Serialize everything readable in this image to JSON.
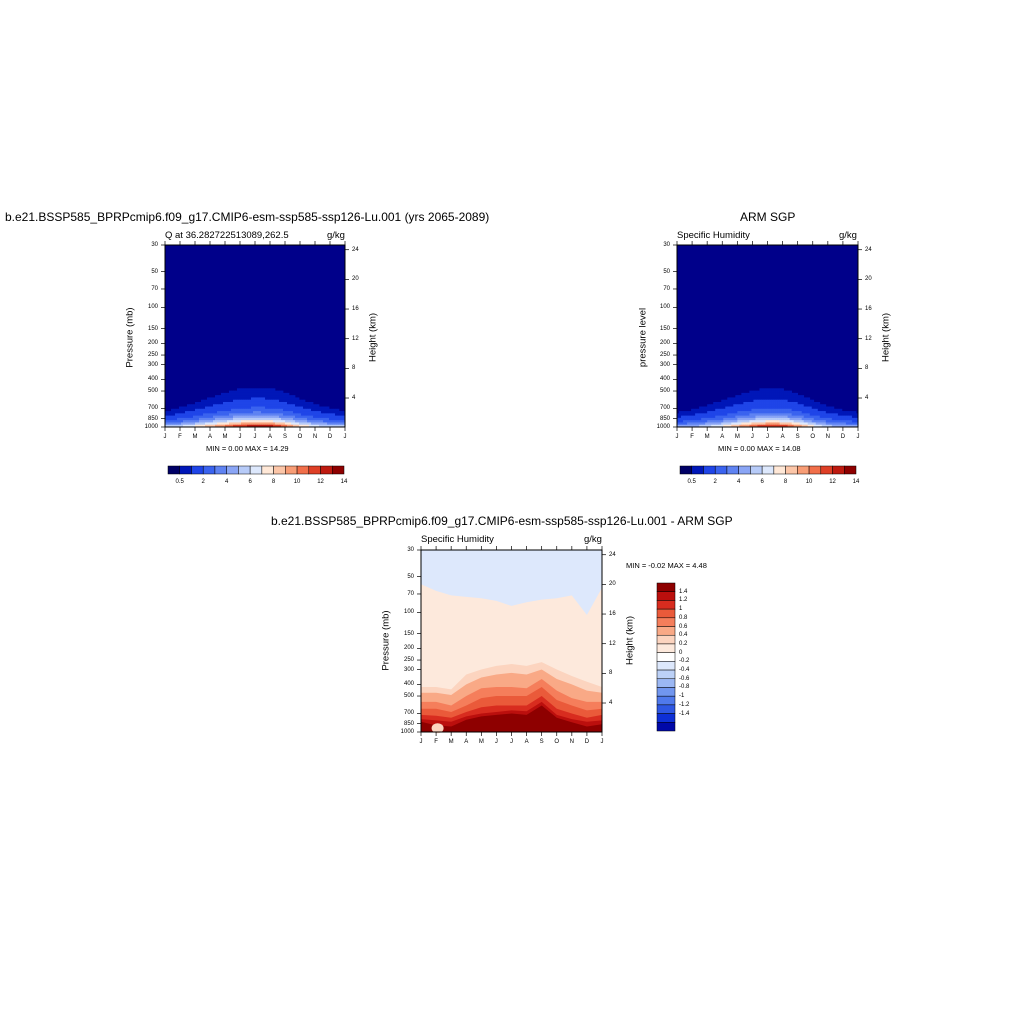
{
  "chart_data": [
    {
      "type": "contour",
      "title": "b.e21.BSSP585_BPRPcmip6.f09_g17.CMIP6-esm-ssp585-ssp126-Lu.001 (yrs 2065-2089)",
      "left_subtitle": "Q at 36.282722513089,262.5",
      "right_subtitle": "g/kg",
      "ylabel": "Pressure (mb)",
      "ylabel_right": "Height (km)",
      "x_ticks": [
        "J",
        "F",
        "M",
        "A",
        "M",
        "J",
        "J",
        "A",
        "S",
        "O",
        "N",
        "D",
        "J"
      ],
      "y_ticks": [
        30,
        50,
        70,
        100,
        150,
        200,
        250,
        300,
        400,
        500,
        700,
        850,
        1000
      ],
      "y_right_ticks": [
        24,
        20,
        16,
        12,
        8,
        4
      ],
      "stats": "MIN =   0.00 MAX =  14.29",
      "min": 0.0,
      "max": 14.29,
      "colorbar_labels": [
        "0.5",
        "2",
        "4",
        "6",
        "8",
        "10",
        "12",
        "14"
      ],
      "levels": [
        0.5,
        1,
        2,
        3,
        4,
        5,
        6,
        7,
        8,
        9,
        10,
        11,
        12,
        13,
        14
      ],
      "surface_values": [
        6.2,
        6.8,
        8.2,
        10.0,
        11.6,
        13.4,
        14.2,
        14.1,
        12.0,
        9.2,
        7.4,
        6.5,
        6.2
      ]
    },
    {
      "type": "contour",
      "title": "ARM SGP",
      "left_subtitle": "Specific Humidity",
      "right_subtitle": "g/kg",
      "ylabel": "pressure level",
      "ylabel_right": "Height (km)",
      "x_ticks": [
        "J",
        "F",
        "M",
        "A",
        "M",
        "J",
        "J",
        "A",
        "S",
        "O",
        "N",
        "D",
        "J"
      ],
      "y_ticks": [
        30,
        50,
        70,
        100,
        150,
        200,
        250,
        300,
        400,
        500,
        700,
        850,
        1000
      ],
      "y_right_ticks": [
        24,
        20,
        16,
        12,
        8,
        4
      ],
      "stats": "MIN =   0.00 MAX =  14.08",
      "min": 0.0,
      "max": 14.08,
      "colorbar_labels": [
        "0.5",
        "2",
        "4",
        "6",
        "8",
        "10",
        "12",
        "14"
      ],
      "levels": [
        0.5,
        1,
        2,
        3,
        4,
        5,
        6,
        7,
        8,
        9,
        10,
        11,
        12,
        13,
        14
      ],
      "surface_values": [
        5.0,
        5.4,
        6.6,
        8.0,
        10.0,
        12.0,
        13.6,
        13.4,
        11.0,
        8.2,
        6.2,
        5.2,
        5.0
      ]
    },
    {
      "type": "contour",
      "title": "b.e21.BSSP585_BPRPcmip6.f09_g17.CMIP6-esm-ssp585-ssp126-Lu.001 - ARM SGP",
      "left_subtitle": "Specific Humidity",
      "right_subtitle": "g/kg",
      "ylabel": "Pressure (mb)",
      "ylabel_right": "Height (km)",
      "x_ticks": [
        "J",
        "F",
        "M",
        "A",
        "M",
        "J",
        "J",
        "A",
        "S",
        "O",
        "N",
        "D",
        "J"
      ],
      "y_ticks": [
        30,
        50,
        70,
        100,
        150,
        200,
        250,
        300,
        400,
        500,
        700,
        850,
        1000
      ],
      "y_right_ticks": [
        24,
        20,
        16,
        12,
        8,
        4
      ],
      "stats": "MIN =  -0.02 MAX =   4.48",
      "min": -0.02,
      "max": 4.48,
      "colorbar_labels": [
        "1.4",
        "1.2",
        "1",
        "0.8",
        "0.6",
        "0.4",
        "0.2",
        "0",
        "-0.2",
        "-0.4",
        "-0.6",
        "-0.8",
        "-1",
        "-1.2",
        "-1.4"
      ]
    }
  ],
  "colors": {
    "panel_blue": "#00008a",
    "palette": [
      "#000066",
      "#0017b8",
      "#1f45e8",
      "#3a63ef",
      "#5f83f2",
      "#8aa5f5",
      "#b7cbf8",
      "#dde8fc",
      "#ffe8d7",
      "#fcc6a8",
      "#f89d76",
      "#f16f4a",
      "#de3f26",
      "#be1a10",
      "#8e0000"
    ],
    "diff_palette_top_to_bottom": [
      "#8e0000",
      "#bb0f0d",
      "#d82c1f",
      "#ea5a3a",
      "#f57e5b",
      "#f9a986",
      "#fcd4bf",
      "#fde9dc",
      "#ffffff",
      "#dde8fc",
      "#bcd1f7",
      "#9bb7f3",
      "#7196ef",
      "#4f79ec",
      "#2e57e3",
      "#0d2fd6",
      "#0008a8"
    ]
  }
}
